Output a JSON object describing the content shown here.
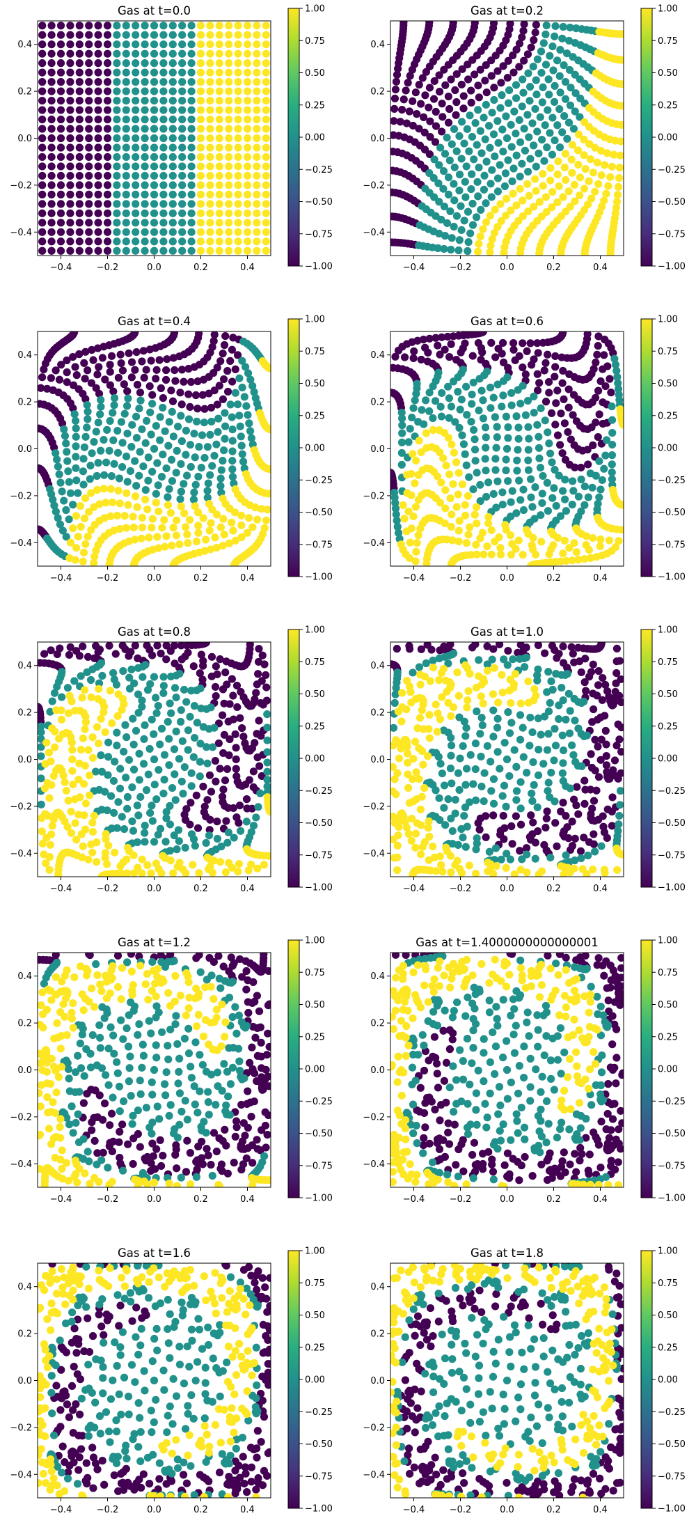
{
  "chart_data": {
    "type": "scatter",
    "layout": "5x2 grid of scatter panels, each with its own colorbar on the right",
    "axes": {
      "xlim": [
        -0.5,
        0.5
      ],
      "ylim": [
        -0.5,
        0.5
      ],
      "xticks": [
        -0.4,
        -0.2,
        0.0,
        0.2,
        0.4
      ],
      "yticks": [
        -0.4,
        -0.2,
        0.0,
        0.2,
        0.4
      ],
      "xtick_labels": [
        "−0.4",
        "−0.2",
        "0.0",
        "0.2",
        "0.4"
      ],
      "ytick_labels": [
        "−0.4",
        "−0.2",
        "0.0",
        "0.2",
        "0.4"
      ],
      "grid": false
    },
    "colorbar": {
      "range": [
        -1.0,
        1.0
      ],
      "ticks": [
        1.0,
        0.75,
        0.5,
        0.25,
        0.0,
        -0.25,
        -0.5,
        -0.75,
        -1.0
      ],
      "tick_labels": [
        "1.00",
        "0.75",
        "0.50",
        "0.25",
        "0.00",
        "−0.25",
        "−0.50",
        "−0.75",
        "−1.00"
      ],
      "colormap": "viridis"
    },
    "colors": {
      "low": "#440154",
      "mid": "#21918c",
      "high": "#fde725"
    },
    "initial_grid": {
      "columns": 25,
      "rows": 25,
      "x_range": [
        -0.48,
        0.48
      ],
      "y_range": [
        -0.48,
        0.48
      ],
      "value_rule": "x < -0.19 → -1 ; -0.19 ≤ x ≤ 0.19 → 0 ; x > 0.19 → 1"
    },
    "panels": [
      {
        "title": "Gas at t=0.0",
        "t": 0.0
      },
      {
        "title": "Gas at t=0.2",
        "t": 0.2
      },
      {
        "title": "Gas at t=0.4",
        "t": 0.4
      },
      {
        "title": "Gas at t=0.6",
        "t": 0.6
      },
      {
        "title": "Gas at t=0.8",
        "t": 0.8
      },
      {
        "title": "Gas at t=1.0",
        "t": 1.0
      },
      {
        "title": "Gas at t=1.2",
        "t": 1.2
      },
      {
        "title": "Gas at t=1.4000000000000001",
        "t": 1.4
      },
      {
        "title": "Gas at t=1.6",
        "t": 1.6
      },
      {
        "title": "Gas at t=1.8",
        "t": 1.8
      }
    ]
  }
}
